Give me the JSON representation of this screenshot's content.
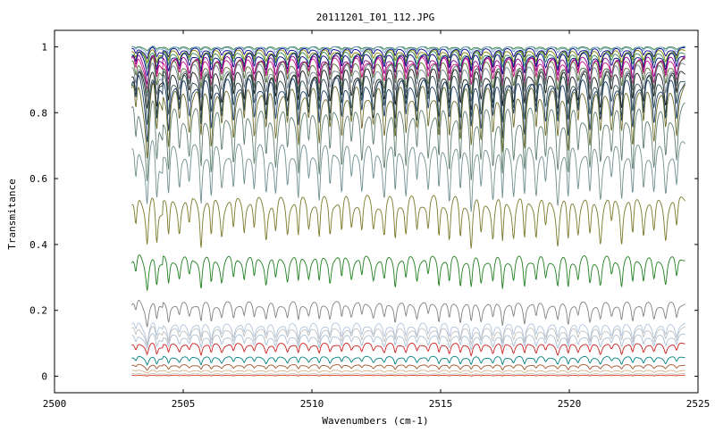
{
  "chart_data": {
    "type": "line",
    "title": "20111201_I01_112.JPG",
    "xlabel": "Wavenumbers (cm-1)",
    "ylabel": "Transmitance",
    "xlim": [
      2500,
      2525
    ],
    "ylim": [
      -0.05,
      1.05
    ],
    "x_ticks": [
      2500,
      2505,
      2510,
      2515,
      2520,
      2525
    ],
    "y_ticks": [
      0,
      0.2,
      0.4,
      0.6,
      0.8,
      1
    ],
    "y_tick_labels": [
      "0",
      "0.2",
      "0.4",
      "0.6",
      "0.8",
      "1"
    ],
    "x_range_data": [
      2503.0,
      2524.5
    ],
    "grid": false,
    "legend": "none",
    "absorption_line_spacing_cm1": 0.42,
    "series": [
      {
        "baseline": 1.0,
        "depth": 0.01,
        "color": "#2f7f2f"
      },
      {
        "baseline": 1.0,
        "depth": 0.02,
        "color": "#6f9fd0"
      },
      {
        "baseline": 0.995,
        "depth": 0.03,
        "color": "#00008b"
      },
      {
        "baseline": 0.99,
        "depth": 0.04,
        "color": "#808000"
      },
      {
        "baseline": 0.985,
        "depth": 0.05,
        "color": "#2e8b57"
      },
      {
        "baseline": 0.98,
        "depth": 0.06,
        "color": "#000080"
      },
      {
        "baseline": 0.97,
        "depth": 0.07,
        "color": "#8b008b"
      },
      {
        "baseline": 0.965,
        "depth": 0.08,
        "color": "#c71585"
      },
      {
        "baseline": 0.955,
        "depth": 0.09,
        "color": "#556b2f"
      },
      {
        "baseline": 0.945,
        "depth": 0.1,
        "color": "#708090"
      },
      {
        "baseline": 0.93,
        "depth": 0.12,
        "color": "#1c1c1c"
      },
      {
        "baseline": 0.915,
        "depth": 0.14,
        "color": "#2f4f4f"
      },
      {
        "baseline": 0.9,
        "depth": 0.16,
        "color": "#1e3f66"
      },
      {
        "baseline": 0.875,
        "depth": 0.18,
        "color": "#6b6b2a"
      },
      {
        "baseline": 0.81,
        "depth": 0.2,
        "color": "#5f7f6f"
      },
      {
        "baseline": 0.7,
        "depth": 0.18,
        "color": "#6f8f8f"
      },
      {
        "baseline": 0.545,
        "depth": 0.15,
        "color": "#7a7a2a"
      },
      {
        "baseline": 0.365,
        "depth": 0.1,
        "color": "#1f7f1f"
      },
      {
        "baseline": 0.225,
        "depth": 0.065,
        "color": "#808080"
      },
      {
        "baseline": 0.16,
        "depth": 0.05,
        "color": "#b0c4de"
      },
      {
        "baseline": 0.145,
        "depth": 0.045,
        "color": "#c0c0c0"
      },
      {
        "baseline": 0.125,
        "depth": 0.04,
        "color": "#a9c0d4"
      },
      {
        "baseline": 0.1,
        "depth": 0.035,
        "color": "#cc1f1f"
      },
      {
        "baseline": 0.06,
        "depth": 0.025,
        "color": "#008080"
      },
      {
        "baseline": 0.035,
        "depth": 0.015,
        "color": "#a0522d"
      },
      {
        "baseline": 0.018,
        "depth": 0.008,
        "color": "#d2b48c"
      },
      {
        "baseline": 0.008,
        "depth": 0.004,
        "color": "#c0c0c0"
      },
      {
        "baseline": 0.003,
        "depth": 0.002,
        "color": "#e04020"
      }
    ]
  }
}
